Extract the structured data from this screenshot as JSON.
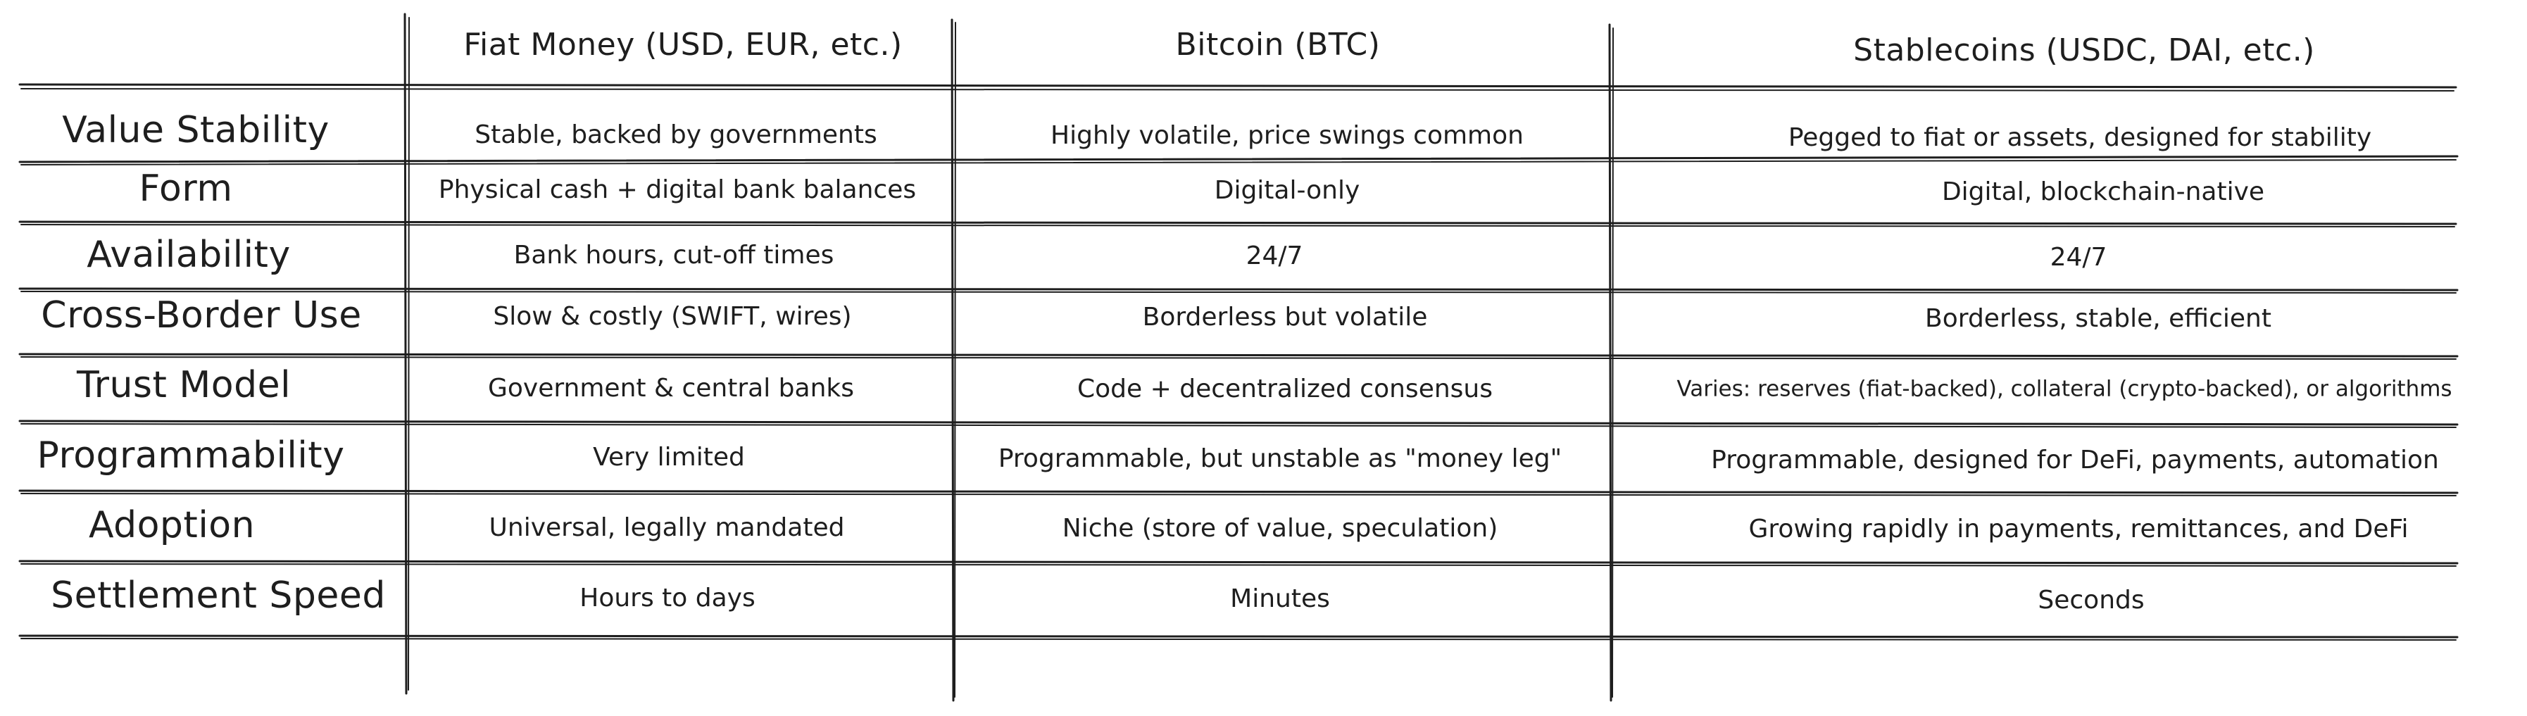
{
  "table": {
    "columns": [
      "Fiat Money (USD, EUR, etc.)",
      "Bitcoin (BTC)",
      "Stablecoins (USDC, DAI, etc.)"
    ],
    "rows": [
      {
        "label": "Value Stability",
        "cells": [
          "Stable, backed by governments",
          "Highly volatile, price swings common",
          "Pegged to fiat or assets, designed for stability"
        ]
      },
      {
        "label": "Form",
        "cells": [
          "Physical cash + digital bank balances",
          "Digital-only",
          "Digital, blockchain-native"
        ]
      },
      {
        "label": "Availability",
        "cells": [
          "Bank hours, cut-off times",
          "24/7",
          "24/7"
        ]
      },
      {
        "label": "Cross-Border Use",
        "cells": [
          "Slow & costly (SWIFT, wires)",
          "Borderless but volatile",
          "Borderless, stable, efficient"
        ]
      },
      {
        "label": "Trust Model",
        "cells": [
          "Government & central banks",
          "Code + decentralized consensus",
          "Varies: reserves (fiat-backed), collateral (crypto-backed), or algorithms"
        ]
      },
      {
        "label": "Programmability",
        "cells": [
          "Very limited",
          "Programmable, but unstable as \"money leg\"",
          "Programmable, designed for DeFi, payments, automation"
        ]
      },
      {
        "label": "Adoption",
        "cells": [
          "Universal, legally mandated",
          "Niche (store of value, speculation)",
          "Growing rapidly in payments, remittances, and DeFi"
        ]
      },
      {
        "label": "Settlement Speed",
        "cells": [
          "Hours to days",
          "Minutes",
          "Seconds"
        ]
      }
    ]
  }
}
